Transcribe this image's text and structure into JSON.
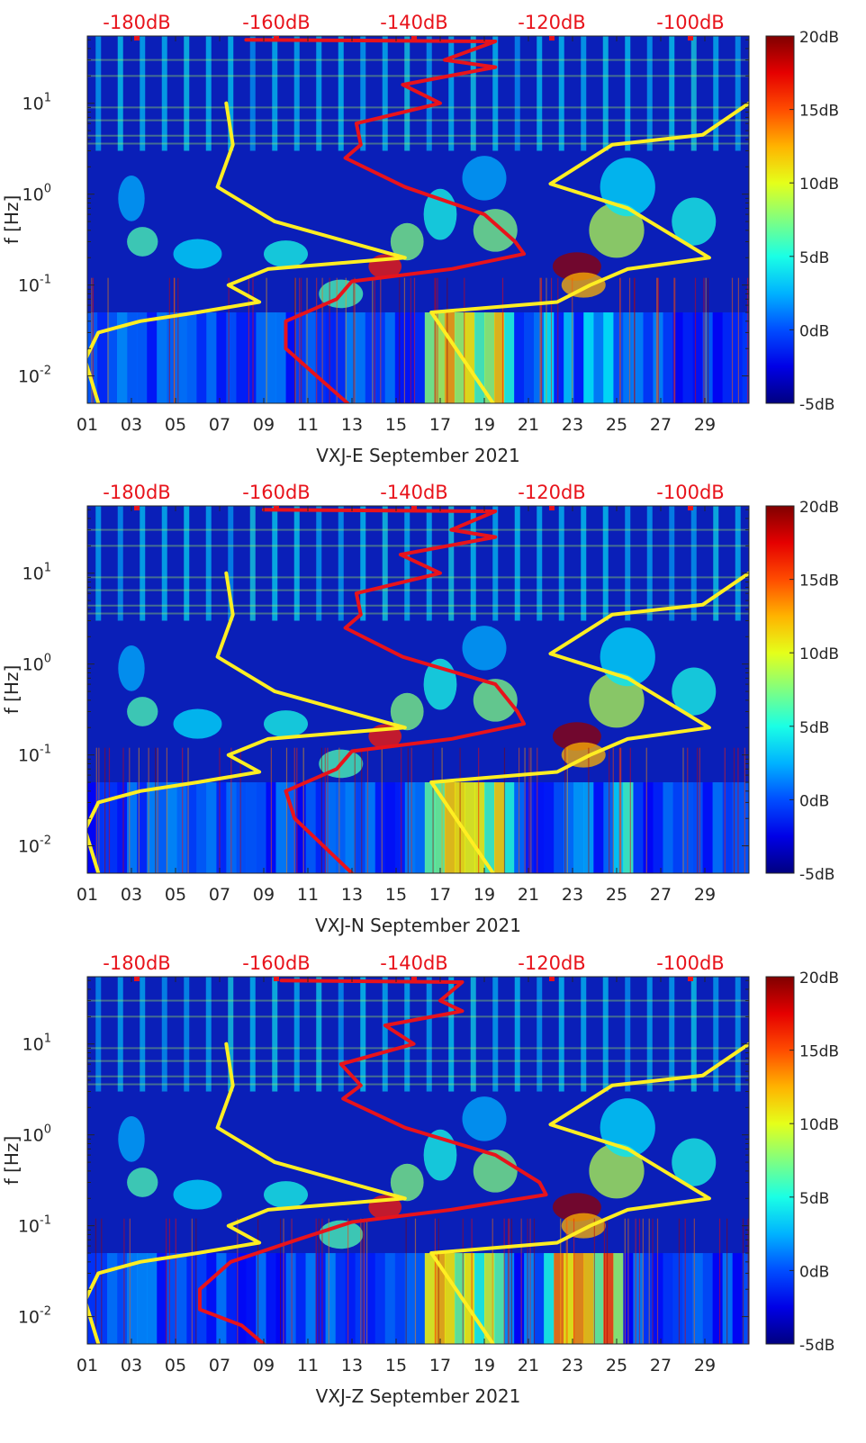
{
  "chart_data": [
    {
      "type": "heatmap",
      "xlabel": "VXJ-E September 2021",
      "ylabel": "f [Hz]",
      "x_ticks": [
        "01",
        "03",
        "05",
        "07",
        "09",
        "11",
        "13",
        "15",
        "17",
        "19",
        "21",
        "23",
        "25",
        "27",
        "29"
      ],
      "x_range": [
        1,
        31
      ],
      "y_scale": "log",
      "y_ticks": [
        {
          "value": 0.01,
          "base": "10",
          "exp": "-2"
        },
        {
          "value": 0.1,
          "base": "10",
          "exp": "-1"
        },
        {
          "value": 1,
          "base": "10",
          "exp": "0"
        },
        {
          "value": 10,
          "base": "10",
          "exp": "1"
        }
      ],
      "y_range": [
        0.005,
        55
      ],
      "top_axis_ticks": [
        "-180dB",
        "-160dB",
        "-140dB",
        "-120dB",
        "-100dB"
      ],
      "top_axis_color": "#e8131b",
      "colorbar": {
        "ticks": [
          "20dB",
          "15dB",
          "10dB",
          "5dB",
          "0dB",
          "-5dB"
        ],
        "range": [
          -5,
          20
        ],
        "colormap": "jet"
      },
      "series": [
        {
          "color": "#ffee22",
          "points": [
            [
              7.3,
              10
            ],
            [
              7.6,
              3.5
            ],
            [
              6.9,
              1.2
            ],
            [
              9.5,
              0.5
            ],
            [
              15.4,
              0.2
            ],
            [
              9.2,
              0.15
            ],
            [
              7.4,
              0.1
            ],
            [
              8.8,
              0.065
            ],
            [
              6,
              0.05
            ],
            [
              3.4,
              0.04
            ],
            [
              1.5,
              0.03
            ],
            [
              0.9,
              0.015
            ],
            [
              1.5,
              0.005
            ]
          ]
        },
        {
          "color": "#ffee22",
          "points": [
            [
              31,
              10
            ],
            [
              28.9,
              4.5
            ],
            [
              24.8,
              3.5
            ],
            [
              22,
              1.3
            ],
            [
              25.5,
              0.7
            ],
            [
              29.2,
              0.2
            ],
            [
              25.5,
              0.15
            ],
            [
              23.8,
              0.1
            ],
            [
              22.3,
              0.065
            ],
            [
              16.6,
              0.05
            ],
            [
              19.4,
              0.005
            ]
          ]
        },
        {
          "color": "#e8131b",
          "points": [
            [
              8.2,
              50
            ],
            [
              19.5,
              48
            ],
            [
              17.2,
              30
            ],
            [
              19.5,
              25
            ],
            [
              15.3,
              16
            ],
            [
              17,
              10
            ],
            [
              13.2,
              6
            ],
            [
              13.4,
              3.5
            ],
            [
              12.7,
              2.5
            ],
            [
              15.4,
              1.2
            ],
            [
              19,
              0.6
            ],
            [
              20.4,
              0.3
            ],
            [
              20.8,
              0.22
            ],
            [
              17.5,
              0.15
            ],
            [
              13,
              0.11
            ],
            [
              12.3,
              0.07
            ],
            [
              10,
              0.04
            ],
            [
              10,
              0.02
            ],
            [
              12.8,
              0.005
            ]
          ]
        }
      ]
    },
    {
      "type": "heatmap",
      "xlabel": "VXJ-N September 2021",
      "ylabel": "f [Hz]",
      "x_ticks": [
        "01",
        "03",
        "05",
        "07",
        "09",
        "11",
        "13",
        "15",
        "17",
        "19",
        "21",
        "23",
        "25",
        "27",
        "29"
      ],
      "x_range": [
        1,
        31
      ],
      "y_scale": "log",
      "y_ticks": [
        {
          "value": 0.01,
          "base": "10",
          "exp": "-2"
        },
        {
          "value": 0.1,
          "base": "10",
          "exp": "-1"
        },
        {
          "value": 1,
          "base": "10",
          "exp": "0"
        },
        {
          "value": 10,
          "base": "10",
          "exp": "1"
        }
      ],
      "y_range": [
        0.005,
        55
      ],
      "top_axis_ticks": [
        "-180dB",
        "-160dB",
        "-140dB",
        "-120dB",
        "-100dB"
      ],
      "top_axis_color": "#e8131b",
      "colorbar": {
        "ticks": [
          "20dB",
          "15dB",
          "10dB",
          "5dB",
          "0dB",
          "-5dB"
        ],
        "range": [
          -5,
          20
        ],
        "colormap": "jet"
      },
      "series": [
        {
          "color": "#ffee22",
          "points": [
            [
              7.3,
              10
            ],
            [
              7.6,
              3.5
            ],
            [
              6.9,
              1.2
            ],
            [
              9.5,
              0.5
            ],
            [
              15.4,
              0.2
            ],
            [
              9.2,
              0.15
            ],
            [
              7.4,
              0.1
            ],
            [
              8.8,
              0.065
            ],
            [
              6,
              0.05
            ],
            [
              3.4,
              0.04
            ],
            [
              1.5,
              0.03
            ],
            [
              0.9,
              0.015
            ],
            [
              1.5,
              0.005
            ]
          ]
        },
        {
          "color": "#ffee22",
          "points": [
            [
              31,
              10
            ],
            [
              28.9,
              4.5
            ],
            [
              24.8,
              3.5
            ],
            [
              22,
              1.3
            ],
            [
              25.5,
              0.7
            ],
            [
              29.2,
              0.2
            ],
            [
              25.5,
              0.15
            ],
            [
              23.8,
              0.1
            ],
            [
              22.3,
              0.065
            ],
            [
              16.6,
              0.05
            ],
            [
              19.4,
              0.005
            ]
          ]
        },
        {
          "color": "#e8131b",
          "points": [
            [
              9,
              50
            ],
            [
              19.5,
              48
            ],
            [
              17.5,
              30
            ],
            [
              19.5,
              25
            ],
            [
              15.2,
              16
            ],
            [
              17,
              10
            ],
            [
              13.2,
              6
            ],
            [
              13.4,
              3.5
            ],
            [
              12.7,
              2.5
            ],
            [
              15.3,
              1.2
            ],
            [
              19.5,
              0.6
            ],
            [
              20.5,
              0.3
            ],
            [
              20.8,
              0.22
            ],
            [
              17.5,
              0.15
            ],
            [
              13,
              0.11
            ],
            [
              12.3,
              0.07
            ],
            [
              10,
              0.04
            ],
            [
              10.4,
              0.02
            ],
            [
              13,
              0.005
            ]
          ]
        }
      ]
    },
    {
      "type": "heatmap",
      "xlabel": "VXJ-Z September 2021",
      "ylabel": "f [Hz]",
      "x_ticks": [
        "01",
        "03",
        "05",
        "07",
        "09",
        "11",
        "13",
        "15",
        "17",
        "19",
        "21",
        "23",
        "25",
        "27",
        "29"
      ],
      "x_range": [
        1,
        31
      ],
      "y_scale": "log",
      "y_ticks": [
        {
          "value": 0.01,
          "base": "10",
          "exp": "-2"
        },
        {
          "value": 0.1,
          "base": "10",
          "exp": "-1"
        },
        {
          "value": 1,
          "base": "10",
          "exp": "0"
        },
        {
          "value": 10,
          "base": "10",
          "exp": "1"
        }
      ],
      "y_range": [
        0.005,
        55
      ],
      "top_axis_ticks": [
        "-180dB",
        "-160dB",
        "-140dB",
        "-120dB",
        "-100dB"
      ],
      "top_axis_color": "#e8131b",
      "colorbar": {
        "ticks": [
          "20dB",
          "15dB",
          "10dB",
          "5dB",
          "0dB",
          "-5dB"
        ],
        "range": [
          -5,
          20
        ],
        "colormap": "jet"
      },
      "series": [
        {
          "color": "#ffee22",
          "points": [
            [
              7.3,
              10
            ],
            [
              7.6,
              3.5
            ],
            [
              6.9,
              1.2
            ],
            [
              9.5,
              0.5
            ],
            [
              15.4,
              0.2
            ],
            [
              9.2,
              0.15
            ],
            [
              7.4,
              0.1
            ],
            [
              8.8,
              0.065
            ],
            [
              6,
              0.05
            ],
            [
              3.4,
              0.04
            ],
            [
              1.5,
              0.03
            ],
            [
              0.9,
              0.015
            ],
            [
              1.5,
              0.005
            ]
          ]
        },
        {
          "color": "#ffee22",
          "points": [
            [
              31,
              10
            ],
            [
              28.9,
              4.5
            ],
            [
              24.8,
              3.5
            ],
            [
              22,
              1.3
            ],
            [
              25.5,
              0.7
            ],
            [
              29.2,
              0.2
            ],
            [
              25.5,
              0.15
            ],
            [
              23.8,
              0.1
            ],
            [
              22.3,
              0.065
            ],
            [
              16.6,
              0.05
            ],
            [
              19.4,
              0.005
            ]
          ]
        },
        {
          "color": "#e8131b",
          "points": [
            [
              9.8,
              50
            ],
            [
              18,
              48
            ],
            [
              17,
              30
            ],
            [
              18,
              23
            ],
            [
              14.5,
              16
            ],
            [
              15.8,
              10
            ],
            [
              12.5,
              6
            ],
            [
              13.4,
              3.5
            ],
            [
              12.6,
              2.5
            ],
            [
              15.4,
              1.2
            ],
            [
              19.5,
              0.6
            ],
            [
              21.5,
              0.3
            ],
            [
              21.8,
              0.22
            ],
            [
              17.5,
              0.15
            ],
            [
              13,
              0.11
            ],
            [
              10.5,
              0.07
            ],
            [
              7.5,
              0.04
            ],
            [
              6.1,
              0.02
            ],
            [
              6.1,
              0.012
            ],
            [
              8,
              0.008
            ],
            [
              9,
              0.005
            ]
          ]
        }
      ]
    }
  ]
}
